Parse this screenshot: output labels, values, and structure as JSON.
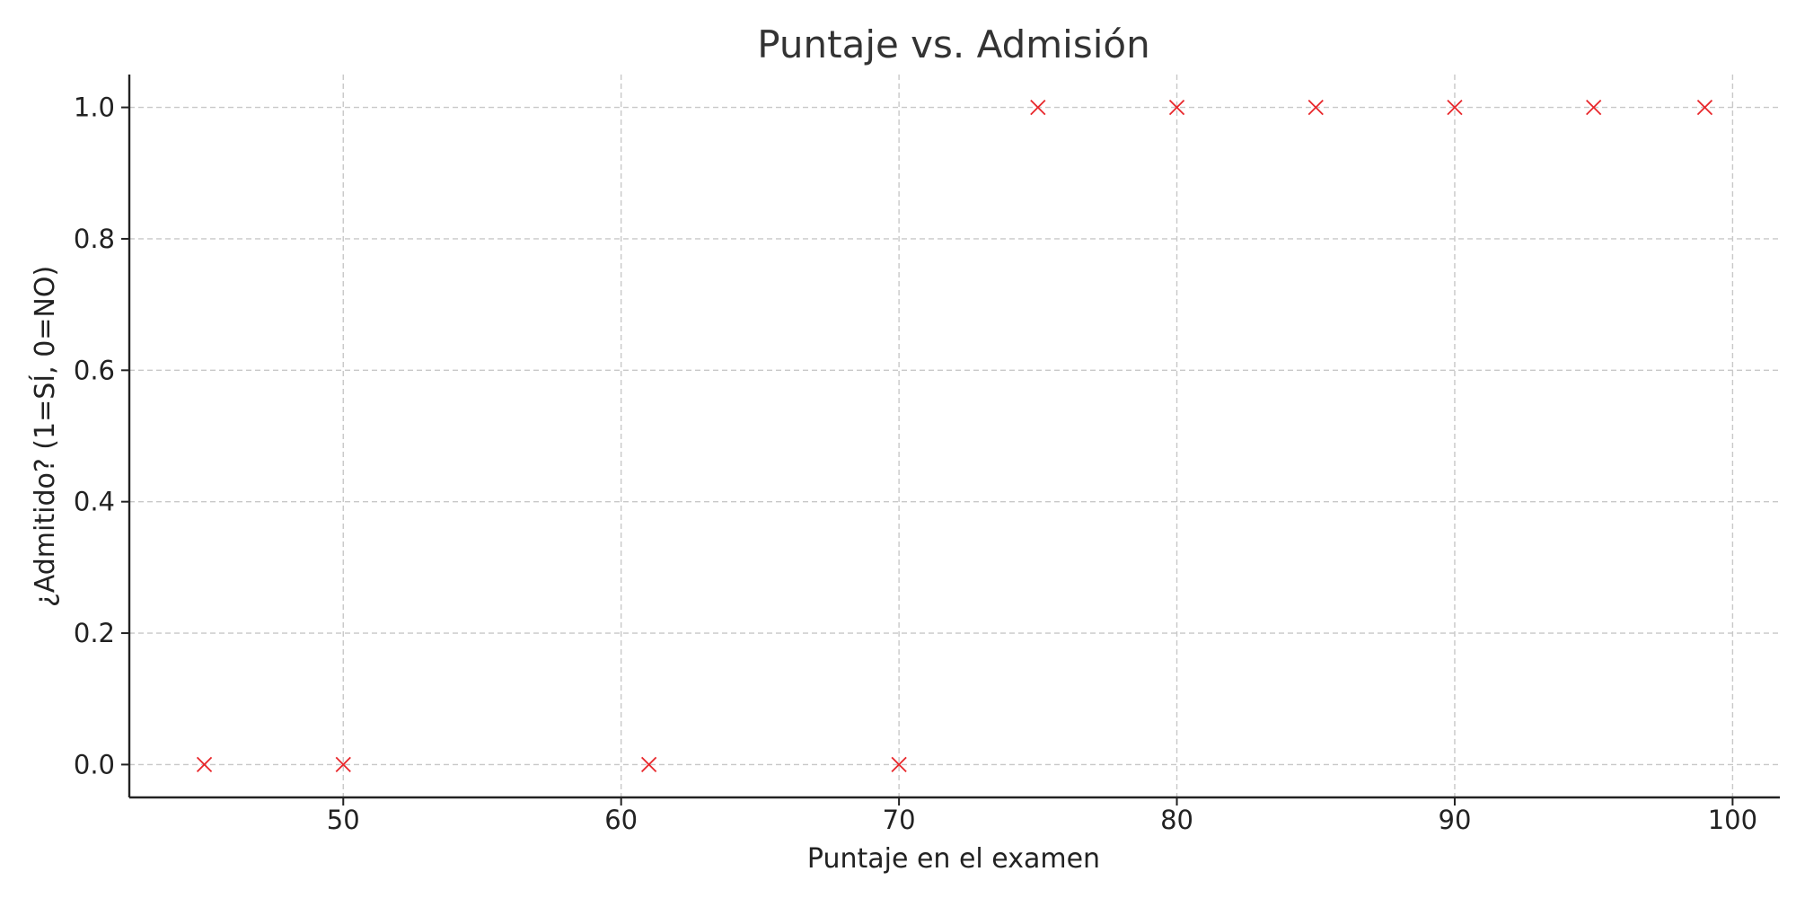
{
  "chart_data": {
    "type": "scatter",
    "title": "Puntaje vs. Admisión",
    "xlabel": "Puntaje en el examen",
    "ylabel": "¿Admitido? (1=SÍ, 0=NO)",
    "xlim": [
      42.3,
      101.7
    ],
    "ylim": [
      -0.05,
      1.05
    ],
    "xticks": [
      50,
      60,
      70,
      80,
      90,
      100
    ],
    "yticks": [
      0.0,
      0.2,
      0.4,
      0.6,
      0.8,
      1.0
    ],
    "xtick_labels": [
      "50",
      "60",
      "70",
      "80",
      "90",
      "100"
    ],
    "ytick_labels": [
      "0.0",
      "0.2",
      "0.4",
      "0.6",
      "0.8",
      "1.0"
    ],
    "grid": true,
    "marker": "x",
    "marker_color": "#e8262a",
    "points": [
      {
        "x": 45,
        "y": 0
      },
      {
        "x": 50,
        "y": 0
      },
      {
        "x": 61,
        "y": 0
      },
      {
        "x": 70,
        "y": 0
      },
      {
        "x": 75,
        "y": 1
      },
      {
        "x": 80,
        "y": 1
      },
      {
        "x": 85,
        "y": 1
      },
      {
        "x": 90,
        "y": 1
      },
      {
        "x": 95,
        "y": 1
      },
      {
        "x": 99,
        "y": 1
      }
    ]
  }
}
